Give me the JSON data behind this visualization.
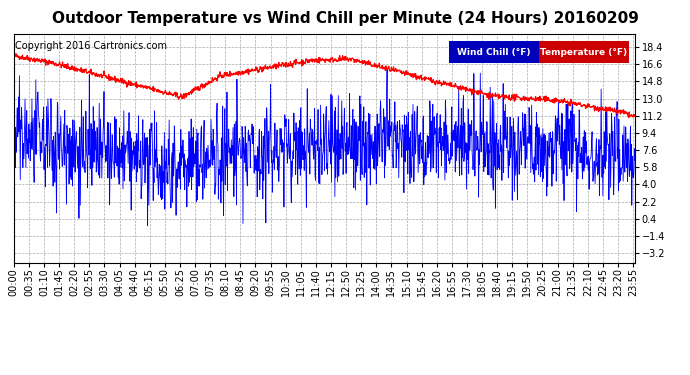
{
  "title": "Outdoor Temperature vs Wind Chill per Minute (24 Hours) 20160209",
  "copyright_text": "Copyright 2016 Cartronics.com",
  "legend_wind_chill": "Wind Chill (°F)",
  "legend_temperature": "Temperature (°F)",
  "wind_chill_color": "#ff0000",
  "temperature_color": "#0000ff",
  "legend_wind_chill_bg": "#0000bb",
  "legend_temperature_bg": "#cc0000",
  "background_color": "#ffffff",
  "grid_color": "#aaaaaa",
  "title_fontsize": 11,
  "copyright_fontsize": 7,
  "tick_fontsize": 7,
  "y_ticks": [
    -3.2,
    -1.4,
    0.4,
    2.2,
    4.0,
    5.8,
    7.6,
    9.4,
    11.2,
    13.0,
    14.8,
    16.6,
    18.4
  ],
  "ylim": [
    -4.2,
    19.8
  ],
  "num_minutes": 1440,
  "x_tick_every": 35
}
